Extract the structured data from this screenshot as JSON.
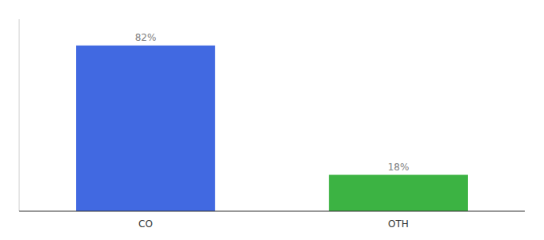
{
  "chart_data": {
    "type": "bar",
    "categories": [
      "CO",
      "OTH"
    ],
    "values": [
      82,
      18
    ],
    "value_labels": [
      "82%",
      "18%"
    ],
    "colors": [
      "#4169e1",
      "#3cb343"
    ],
    "ylim": [
      0,
      95
    ],
    "data_labels": true,
    "tick_labels": "x"
  }
}
